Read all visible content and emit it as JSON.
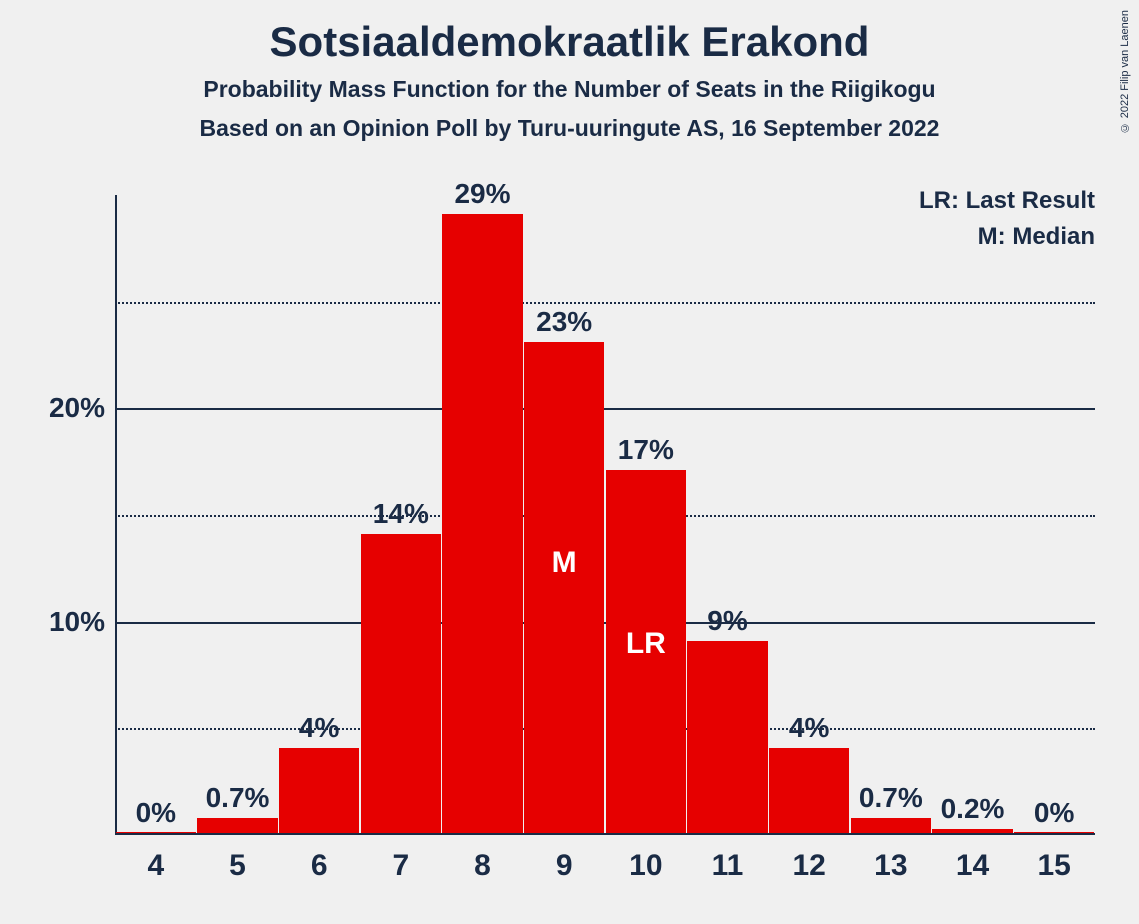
{
  "copyright": "© 2022 Filip van Laenen",
  "title": "Sotsiaaldemokraatlik Erakond",
  "subtitle1": "Probability Mass Function for the Number of Seats in the Riigikogu",
  "subtitle2": "Based on an Opinion Poll by Turu-uuringute AS, 16 September 2022",
  "legend": {
    "lr": "LR: Last Result",
    "m": "M: Median"
  },
  "chart": {
    "type": "bar",
    "bar_color": "#e60000",
    "background_color": "#f0f0f0",
    "axis_color": "#1a2b45",
    "text_color": "#1a2b45",
    "inner_label_color": "#ffffff",
    "ymax": 30,
    "y_major_ticks": [
      10,
      20
    ],
    "y_major_labels": [
      "10%",
      "20%"
    ],
    "y_minor_ticks": [
      5,
      15,
      25
    ],
    "bar_width_ratio": 0.98,
    "x_categories": [
      "4",
      "5",
      "6",
      "7",
      "8",
      "9",
      "10",
      "11",
      "12",
      "13",
      "14",
      "15"
    ],
    "values": [
      0,
      0.7,
      4,
      14,
      29,
      23,
      17,
      9,
      4,
      0.7,
      0.2,
      0
    ],
    "value_labels": [
      "0%",
      "0.7%",
      "4%",
      "14%",
      "29%",
      "23%",
      "17%",
      "9%",
      "4%",
      "0.7%",
      "0.2%",
      "0%"
    ],
    "median_index": 5,
    "median_label": "M",
    "lr_index": 6,
    "lr_label": "LR",
    "title_fontsize": 42,
    "subtitle_fontsize": 23,
    "axis_label_fontsize": 28,
    "bar_label_fontsize": 28,
    "x_label_fontsize": 30,
    "legend_fontsize": 24
  }
}
